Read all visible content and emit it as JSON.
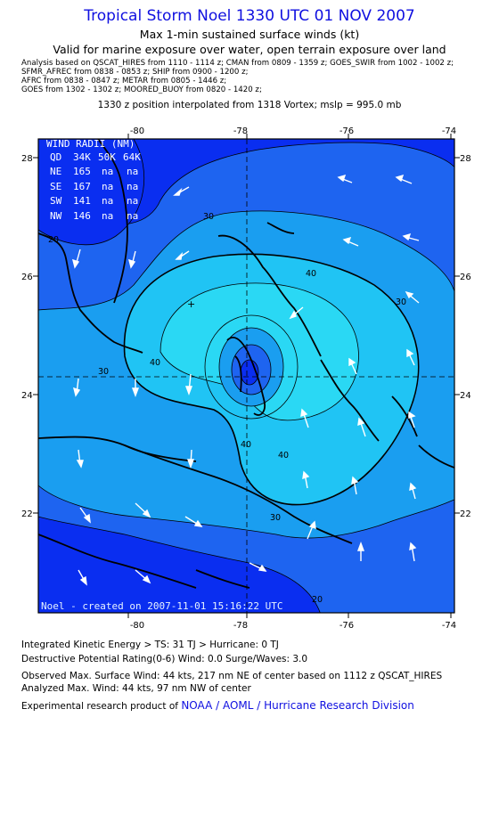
{
  "header": {
    "title": "Tropical Storm Noel 1330 UTC 01 NOV 2007",
    "subtitle1": "Max 1-min sustained surface winds (kt)",
    "subtitle2": "Valid for marine exposure over water, open terrain exposure over land",
    "analysis_lines": [
      "Analysis based on  QSCAT_HIRES from 1110 - 1114 z;  CMAN from 0809 - 1359 z;  GOES_SWIR from 1002 - 1002 z;",
      "SFMR_AFREC from 0838 - 0853 z;  SHIP from 0900 - 1200 z;",
      "AFRC from 0838 - 0847 z;  METAR from 0805 - 1446 z;",
      "GOES from 1302 - 1302 z;  MOORED_BUOY from 0820 - 1420 z;"
    ],
    "position_line": "1330 z position interpolated from 1318 Vortex; mslp = 995.0 mb"
  },
  "map": {
    "lon_ticks_top": [
      "-80",
      "-78",
      "-76",
      "-74"
    ],
    "lon_ticks_bottom": [
      "-80",
      "-78",
      "-76",
      "-74"
    ],
    "lat_ticks_left": [
      "28",
      "26",
      "24",
      "22"
    ],
    "lat_ticks_right": [
      "28",
      "26",
      "24",
      "22"
    ],
    "contour_labels": [
      "20",
      "30",
      "40",
      "40",
      "30",
      "40",
      "40",
      "30",
      "30",
      "20"
    ],
    "wind_radii": {
      "title": "WIND RADII (NM)",
      "header": [
        "QD",
        "34K",
        "50K",
        "64K"
      ],
      "rows": [
        [
          "NE",
          "165",
          "na",
          "na"
        ],
        [
          "SE",
          "167",
          "na",
          "na"
        ],
        [
          "SW",
          "141",
          "na",
          "na"
        ],
        [
          "NW",
          "146",
          "na",
          "na"
        ]
      ]
    },
    "credit": "Noel - created on 2007-11-01 15:16:22 UTC",
    "colors": {
      "deep": "#0a2ef0",
      "band20": "#1e64f0",
      "band30": "#1a9ef0",
      "band40": "#20c4f4",
      "core": "#2ad8f4",
      "land_line": "#000000",
      "arrow": "#ffffff"
    }
  },
  "footer": {
    "ike": "Integrated Kinetic Energy > TS: 31 TJ   > Hurricane: 0 TJ",
    "dpr": "Destructive Potential Rating(0-6)   Wind: 0.0 Surge/Waves: 3.0",
    "observed": "Observed Max. Surface Wind: 44 kts, 217 nm NE of center based on 1112 z QSCAT_HIRES",
    "analyzed": "Analyzed Max. Wind: 44 kts, 97 nm NW of center",
    "product_prefix": "Experimental research product of",
    "product_link": "NOAA / AOML / Hurricane Research Division"
  }
}
